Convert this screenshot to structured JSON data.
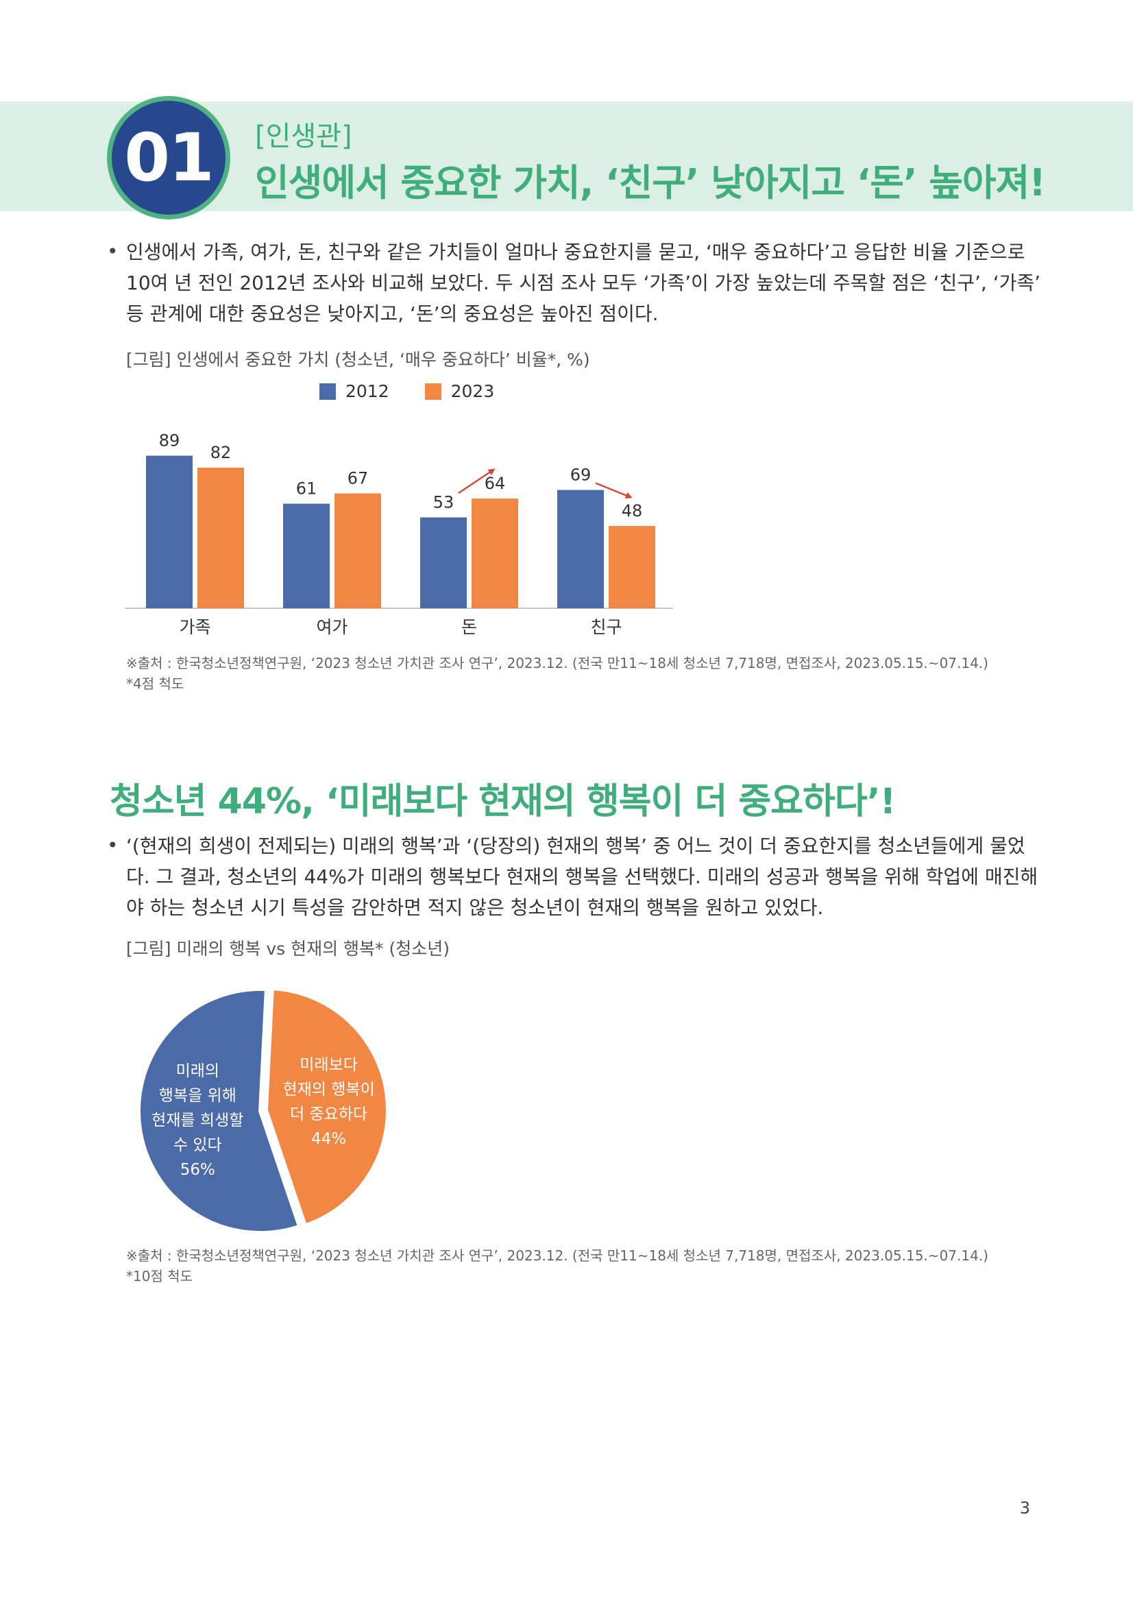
{
  "section1": {
    "number": "01",
    "category": "[인생관]",
    "title": "인생에서 중요한 가치, ‘친구’ 낮아지고 ‘돈’ 높아져!",
    "bullet": "•",
    "paragraph": [
      "인생에서 가족, 여가, 돈, 친구와 같은 가치들이 얼마나 중요한지를 묻고, ‘매우 중요하다’고 응답한 비율 기준으로",
      "10여 년 전인 2012년 조사와 비교해 보았다. 두 시점 조사 모두 ‘가족’이 가장 높았는데 주목할 점은 ‘친구’, ‘가족’",
      "등 관계에 대한 중요성은 낮아지고, ‘돈’의 중요성은 높아진 점이다."
    ],
    "figure_caption": "[그림] 인생에서 중요한 가치 (청소년, ‘매우 중요하다’ 비율*, %)",
    "source": "※출처 : 한국청소년정책연구원, ‘2023 청소년 가치관 조사 연구’, 2023.12. (전국 만11~18세 청소년 7,718명, 면접조사, 2023.05.15.~07.14.)",
    "note": "*4점 척도"
  },
  "section2": {
    "title": "청소년 44%, ‘미래보다 현재의 행복이 더 중요하다’!",
    "bullet": "•",
    "paragraph": [
      "‘(현재의 희생이 전제되는) 미래의 행복’과 ‘(당장의) 현재의 행복’ 중 어느 것이 더 중요한지를 청소년들에게 물었",
      "다. 그 결과, 청소년의 44%가 미래의 행복보다 현재의 행복을 선택했다. 미래의 성공과 행복을 위해 학업에 매진해",
      "야 하는 청소년 시기 특성을 감안하면 적지 않은 청소년이 현재의 행복을 원하고 있었다."
    ],
    "figure_caption": "[그림] 미래의 행복 vs 현재의 행복* (청소년)",
    "source": "※출처 : 한국청소년정책연구원, ‘2023 청소년 가치관 조사 연구’, 2023.12. (전국 만11~18세 청소년 7,718명, 면접조사, 2023.05.15.~07.14.)",
    "note": "*10점 척도"
  },
  "page_number": "3",
  "colors": {
    "green": "#3fae7c",
    "navy": "#27478f",
    "blue": "#4a6aa8",
    "orange": "#f28744",
    "arrow_red": "#d9453a"
  },
  "chart_data": [
    {
      "type": "bar",
      "categories": [
        "가족",
        "여가",
        "돈",
        "친구"
      ],
      "series": [
        {
          "name": "2012",
          "values": [
            89,
            61,
            53,
            69
          ],
          "color": "#4a6aa8"
        },
        {
          "name": "2023",
          "values": [
            82,
            67,
            64,
            48
          ],
          "color": "#f28744"
        }
      ],
      "ylim": [
        0,
        100
      ],
      "legend": "top-center",
      "annotations": [
        {
          "category": "돈",
          "direction": "up"
        },
        {
          "category": "친구",
          "direction": "down"
        }
      ]
    },
    {
      "type": "pie",
      "slices": [
        {
          "lines": [
            "미래의",
            "행복을 위해",
            "현재를 희생할",
            "수 있다"
          ],
          "pct_label": "56%",
          "value": 56,
          "color": "#4a6aa8"
        },
        {
          "lines": [
            "미래보다",
            "현재의 행복이",
            "더 중요하다"
          ],
          "pct_label": "44%",
          "value": 44,
          "color": "#f28744"
        }
      ]
    }
  ]
}
